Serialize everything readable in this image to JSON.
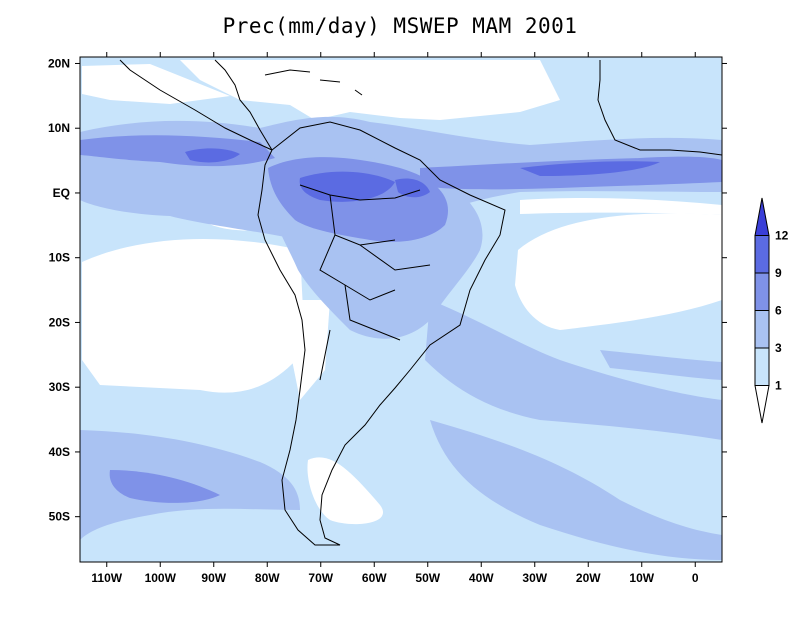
{
  "title": "Prec(mm/day) MSWEP MAM 2001",
  "map": {
    "lon_range": [
      -115,
      5
    ],
    "lat_range": [
      -57,
      21
    ],
    "lon_ticks": [
      {
        "lon": -110,
        "label": "110W"
      },
      {
        "lon": -100,
        "label": "100W"
      },
      {
        "lon": -90,
        "label": "90W"
      },
      {
        "lon": -80,
        "label": "80W"
      },
      {
        "lon": -70,
        "label": "70W"
      },
      {
        "lon": -60,
        "label": "60W"
      },
      {
        "lon": -50,
        "label": "50W"
      },
      {
        "lon": -40,
        "label": "40W"
      },
      {
        "lon": -30,
        "label": "30W"
      },
      {
        "lon": -20,
        "label": "20W"
      },
      {
        "lon": -10,
        "label": "10W"
      },
      {
        "lon": 0,
        "label": "0"
      }
    ],
    "lat_ticks": [
      {
        "lat": 20,
        "label": "20N"
      },
      {
        "lat": 10,
        "label": "10N"
      },
      {
        "lat": 0,
        "label": "EQ"
      },
      {
        "lat": -10,
        "label": "10S"
      },
      {
        "lat": -20,
        "label": "20S"
      },
      {
        "lat": -30,
        "label": "30S"
      },
      {
        "lat": -40,
        "label": "40S"
      },
      {
        "lat": -50,
        "label": "50S"
      }
    ]
  },
  "colorbar": {
    "levels": [
      "1",
      "3",
      "6",
      "9",
      "12"
    ],
    "colors": [
      "#ffffff",
      "#c8e4fb",
      "#a9c2f2",
      "#7f92e8",
      "#5b6be2",
      "#3a3fd8"
    ]
  },
  "colors": {
    "lt1": "#ffffff",
    "c1_3": "#c8e4fb",
    "c3_6": "#a9c2f2",
    "c6_9": "#7f92e8",
    "c9_12": "#5b6be2",
    "gt12": "#3a3fd8"
  }
}
